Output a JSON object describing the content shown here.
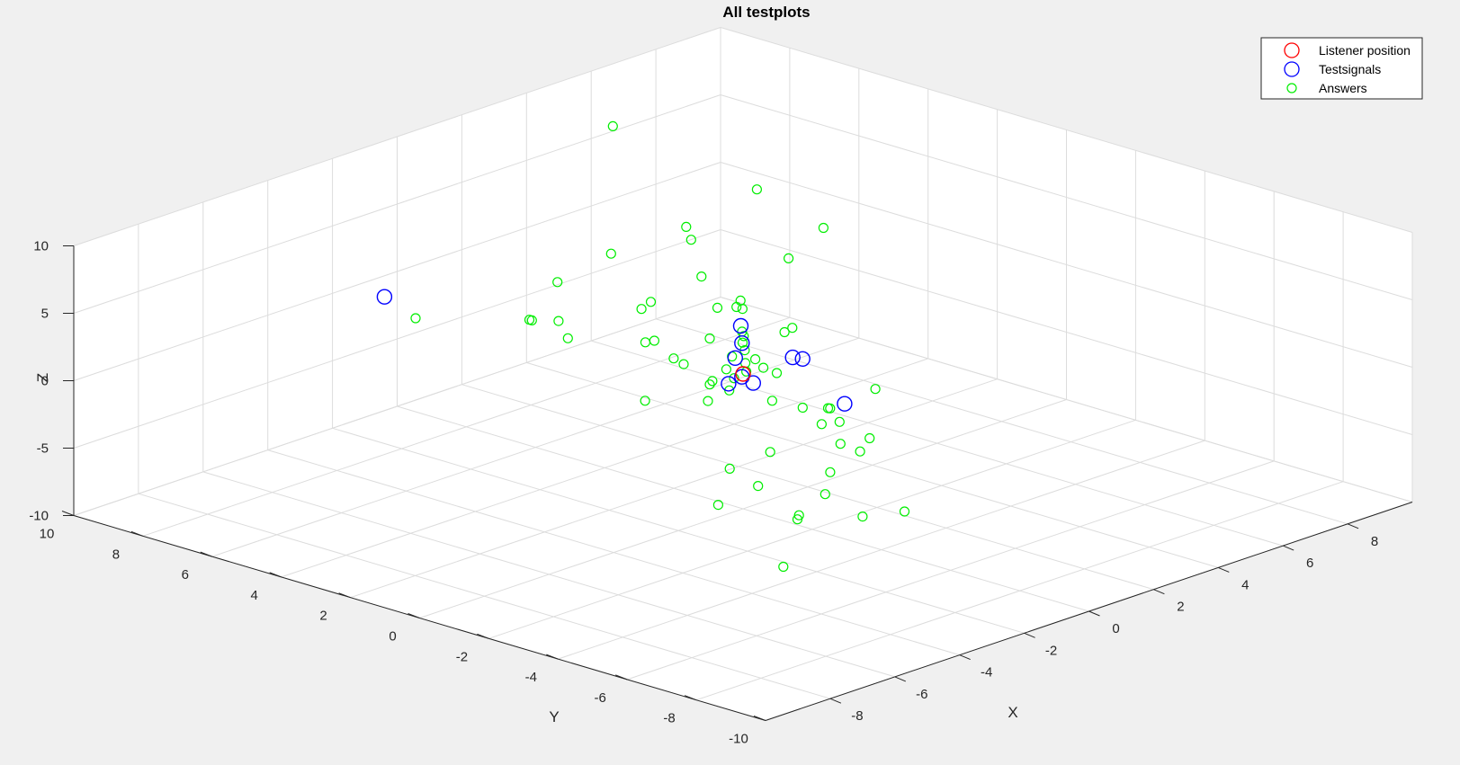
{
  "chart_data": {
    "type": "scatter",
    "title": "All testplots",
    "xlabel": "X",
    "ylabel": "Y",
    "zlabel": "Z",
    "xlim": [
      -10,
      10
    ],
    "ylim": [
      -10,
      10
    ],
    "zlim": [
      -10,
      10
    ],
    "x_ticks": [
      "-8",
      "-6",
      "-4",
      "-2",
      "0",
      "2",
      "4",
      "6",
      "8"
    ],
    "y_ticks": [
      "-10",
      "-8",
      "-6",
      "-4",
      "-2",
      "0",
      "2",
      "4",
      "6",
      "8",
      "10"
    ],
    "z_ticks": [
      "-10",
      "-5",
      "0",
      "5",
      "10"
    ],
    "grid": true,
    "legend_position": "top-right",
    "view": "3d-perspective",
    "series": [
      {
        "name": "Listener position",
        "color": "#ff0000",
        "marker": "large-circle",
        "points": [
          [
            0,
            0,
            0
          ]
        ]
      },
      {
        "name": "Testsignals",
        "color": "#0000ff",
        "marker": "large-circle",
        "points": [
          [
            -0.5,
            9.9,
            -1.4
          ],
          [
            1,
            1,
            2
          ],
          [
            0.5,
            0.5,
            1.5
          ],
          [
            1,
            -0.5,
            0.8
          ],
          [
            1.2,
            -0.6,
            0.6
          ],
          [
            0.4,
            0.6,
            0.4
          ],
          [
            0.5,
            0.5,
            -1
          ],
          [
            0.3,
            0.7,
            -1.5
          ],
          [
            0.1,
            -0.2,
            -0.6
          ],
          [
            1,
            -2,
            -1.5
          ]
        ]
      },
      {
        "name": "Answers",
        "color": "#00ee00",
        "marker": "small-circle",
        "points": [
          [
            5.6,
            9,
            7
          ],
          [
            4.6,
            3.9,
            7
          ],
          [
            -1.3,
            2.6,
            8
          ],
          [
            3.1,
            4.4,
            4.1
          ],
          [
            5.3,
            6.6,
            1.6
          ],
          [
            -4.4,
            -4.1,
            9
          ],
          [
            7.3,
            4.5,
            1.5
          ],
          [
            -4,
            -7.4,
            4.1
          ],
          [
            5.9,
            4.2,
            0.6
          ],
          [
            -0.4,
            -4.2,
            2.4
          ],
          [
            -2.2,
            -2.9,
            2
          ],
          [
            -1.8,
            -4.2,
            2.1
          ],
          [
            -4.4,
            -4.9,
            1.5
          ],
          [
            -0.9,
            -3.3,
            0.7
          ],
          [
            3.1,
            4.1,
            1.6
          ],
          [
            1,
            3.6,
            1.8
          ],
          [
            3.3,
            3.1,
            -0.2
          ],
          [
            2.7,
            1.1,
            0.4
          ],
          [
            1.2,
            1.1,
            1
          ],
          [
            -1.3,
            0.5,
            1.4
          ],
          [
            -1.9,
            -3.5,
            1.7
          ],
          [
            -1.4,
            -4.1,
            0.7
          ],
          [
            0.7,
            0.3,
            0.3
          ],
          [
            0.3,
            0.6,
            0.6
          ],
          [
            0.4,
            -0.6,
            0.2
          ],
          [
            0.5,
            0.4,
            0.1
          ],
          [
            0.1,
            0,
            0.1
          ],
          [
            0.2,
            -0.4,
            0.6
          ],
          [
            -0.6,
            -0.3,
            0.4
          ],
          [
            -0.6,
            0.4,
            -0.6
          ],
          [
            -0.2,
            0.7,
            -0.9
          ],
          [
            -1.3,
            -0.2,
            -0.8
          ],
          [
            1,
            3.5,
            -1
          ],
          [
            2.5,
            3.3,
            -1.9
          ],
          [
            1.6,
            3.5,
            -2.8
          ],
          [
            2.3,
            2.1,
            -1.7
          ],
          [
            -1.8,
            -4.5,
            -0.3
          ],
          [
            -3.4,
            -5.7,
            -0.2
          ],
          [
            3.1,
            1.7,
            -0.7
          ],
          [
            4.2,
            4,
            -1
          ],
          [
            1.3,
            1.7,
            -2
          ],
          [
            -1.3,
            -4.6,
            -1.2
          ],
          [
            -2.6,
            -7.1,
            -2.7
          ],
          [
            6,
            5.8,
            -4.3
          ],
          [
            1.2,
            7.3,
            -2.5
          ],
          [
            -0.5,
            9,
            -2.3
          ],
          [
            1.6,
            7.6,
            -3.1
          ],
          [
            4.1,
            9.2,
            -3.5
          ],
          [
            -2.7,
            -4.9,
            -3
          ],
          [
            -3.6,
            -3.8,
            -2.5
          ],
          [
            -3.3,
            -2.7,
            -2.3
          ],
          [
            -4.9,
            -6.2,
            -1.8
          ],
          [
            6.8,
            7.1,
            -6
          ],
          [
            3.6,
            8.7,
            -5.6
          ],
          [
            -5.6,
            -6.4,
            -4.9
          ],
          [
            -2.4,
            -5.7,
            -4.3
          ],
          [
            0.4,
            -1.9,
            -2.6
          ],
          [
            2.5,
            7.4,
            -5
          ],
          [
            -4.2,
            -5.5,
            -3.2
          ],
          [
            1.5,
            1.8,
            -3.8
          ],
          [
            5,
            7.5,
            -7.4
          ],
          [
            0.5,
            3.3,
            -4.9
          ],
          [
            6.7,
            9.2,
            -7.6
          ],
          [
            -7.4,
            -6.2,
            1
          ],
          [
            3.5,
            3.3,
            -2.2
          ]
        ]
      }
    ]
  }
}
